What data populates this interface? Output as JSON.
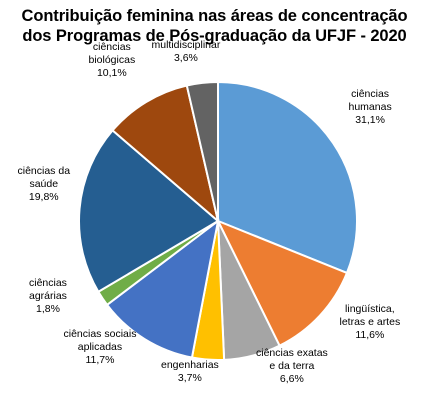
{
  "chart_data": {
    "type": "pie",
    "title_line1": "Contribuição feminina nas áreas de concentração",
    "title_line2": "dos Programas de Pós-graduação da UFJF - 2020",
    "slices": [
      {
        "label_line1": "ciências",
        "label_line2": "humanas",
        "value_text": "31,1%",
        "value": 31.1,
        "color": "#5B9BD5"
      },
      {
        "label_line1": "lingüística,",
        "label_line2": "letras e artes",
        "value_text": "11,6%",
        "value": 11.6,
        "color": "#ED7D31"
      },
      {
        "label_line1": "ciências exatas",
        "label_line2": "e da terra",
        "value_text": "6,6%",
        "value": 6.6,
        "color": "#A5A5A5"
      },
      {
        "label_line1": "engenharias",
        "label_line2": "",
        "value_text": "3,7%",
        "value": 3.7,
        "color": "#FFC000"
      },
      {
        "label_line1": "ciências sociais",
        "label_line2": "aplicadas",
        "value_text": "11,7%",
        "value": 11.7,
        "color": "#4472C4"
      },
      {
        "label_line1": "ciências",
        "label_line2": "agrárias",
        "value_text": "1,8%",
        "value": 1.8,
        "color": "#70AD47"
      },
      {
        "label_line1": "ciências da",
        "label_line2": "saúde",
        "value_text": "19,8%",
        "value": 19.8,
        "color": "#255E91"
      },
      {
        "label_line1": "ciências",
        "label_line2": "biológicas",
        "value_text": "10,1%",
        "value": 10.1,
        "color": "#9E480E"
      },
      {
        "label_line1": "multidisciplinar",
        "label_line2": "",
        "value_text": "3,6%",
        "value": 3.6,
        "color": "#636363"
      }
    ]
  }
}
